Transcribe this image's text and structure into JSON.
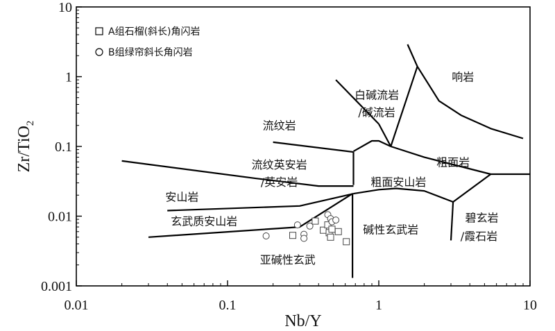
{
  "chart_data": {
    "type": "scatter",
    "title": "",
    "xlabel": "Nb/Y",
    "ylabel_main": "Zr/TiO",
    "ylabel_sub": "2",
    "xscale": "log",
    "yscale": "log",
    "xlim": [
      0.01,
      10
    ],
    "ylim": [
      0.001,
      10
    ],
    "x_ticks": [
      {
        "value": 0.01,
        "label": "0.01"
      },
      {
        "value": 0.1,
        "label": "0.1"
      },
      {
        "value": 1,
        "label": "1"
      },
      {
        "value": 10,
        "label": "10"
      }
    ],
    "y_ticks": [
      {
        "value": 0.001,
        "label": "0.001"
      },
      {
        "value": 0.01,
        "label": "0.01"
      },
      {
        "value": 0.1,
        "label": "0.1"
      },
      {
        "value": 1,
        "label": "1"
      },
      {
        "value": 10,
        "label": "10"
      }
    ],
    "grid": false,
    "legend_position": "top-left",
    "series": [
      {
        "name": "A组石榴(斜长)角闪岩",
        "marker": "square",
        "points": [
          [
            0.27,
            0.0053
          ],
          [
            0.38,
            0.0085
          ],
          [
            0.43,
            0.0063
          ],
          [
            0.46,
            0.0075
          ],
          [
            0.47,
            0.0058
          ],
          [
            0.48,
            0.005
          ],
          [
            0.49,
            0.0065
          ],
          [
            0.54,
            0.006
          ],
          [
            0.61,
            0.0043
          ]
        ]
      },
      {
        "name": "B组绿帘斜长角闪岩",
        "marker": "circle",
        "points": [
          [
            0.18,
            0.0052
          ],
          [
            0.29,
            0.0075
          ],
          [
            0.32,
            0.0055
          ],
          [
            0.32,
            0.0048
          ],
          [
            0.35,
            0.0072
          ],
          [
            0.46,
            0.0105
          ],
          [
            0.48,
            0.0092
          ],
          [
            0.49,
            0.0083
          ],
          [
            0.52,
            0.0088
          ]
        ]
      }
    ],
    "boundaries": [
      [
        [
          1.55,
          2.9
        ],
        [
          1.8,
          1.4
        ],
        [
          1.2,
          0.1
        ]
      ],
      [
        [
          1.8,
          1.4
        ],
        [
          2.5,
          0.45
        ],
        [
          3.5,
          0.28
        ],
        [
          5.5,
          0.18
        ],
        [
          9.0,
          0.13
        ]
      ],
      [
        [
          0.52,
          0.9
        ],
        [
          1.0,
          0.21
        ]
      ],
      [
        [
          1.0,
          0.21
        ],
        [
          1.2,
          0.1
        ]
      ],
      [
        [
          0.68,
          0.085
        ],
        [
          0.9,
          0.12
        ],
        [
          1.0,
          0.12
        ],
        [
          1.2,
          0.1
        ]
      ],
      [
        [
          0.2,
          0.115
        ],
        [
          0.68,
          0.083
        ]
      ],
      [
        [
          0.68,
          0.083
        ],
        [
          0.68,
          0.028
        ]
      ],
      [
        [
          0.02,
          0.062
        ],
        [
          0.15,
          0.035
        ],
        [
          0.4,
          0.027
        ],
        [
          0.68,
          0.027
        ]
      ],
      [
        [
          1.2,
          0.1
        ],
        [
          2.0,
          0.07
        ],
        [
          5.5,
          0.04
        ],
        [
          10.0,
          0.04
        ]
      ],
      [
        [
          0.68,
          0.021
        ],
        [
          1.0,
          0.024
        ],
        [
          1.3,
          0.025
        ],
        [
          2.0,
          0.023
        ],
        [
          3.1,
          0.016
        ],
        [
          5.5,
          0.04
        ]
      ],
      [
        [
          0.68,
          0.021
        ],
        [
          0.3,
          0.014
        ],
        [
          0.04,
          0.012
        ]
      ],
      [
        [
          0.67,
          0.021
        ],
        [
          0.3,
          0.007
        ],
        [
          0.03,
          0.005
        ]
      ],
      [
        [
          0.67,
          0.021
        ],
        [
          0.67,
          0.0013
        ]
      ],
      [
        [
          3.1,
          0.016
        ],
        [
          3.0,
          0.0045
        ]
      ]
    ],
    "field_labels": [
      {
        "text": "响岩",
        "x": 3.6,
        "y": 1.0
      },
      {
        "text": "白碱流岩",
        "x": 0.97,
        "y": 0.55
      },
      {
        "text": "/碱流岩",
        "x": 0.97,
        "y": 0.31
      },
      {
        "text": "流纹岩",
        "x": 0.22,
        "y": 0.2
      },
      {
        "text": "粗面岩",
        "x": 3.1,
        "y": 0.06
      },
      {
        "text": "流纹英安岩",
        "x": 0.22,
        "y": 0.055
      },
      {
        "text": "/英安岩",
        "x": 0.22,
        "y": 0.031
      },
      {
        "text": "粗面安山岩",
        "x": 1.35,
        "y": 0.031
      },
      {
        "text": "安山岩",
        "x": 0.05,
        "y": 0.019
      },
      {
        "text": "玄武质安山岩",
        "x": 0.07,
        "y": 0.0085
      },
      {
        "text": "碧玄岩",
        "x": 4.8,
        "y": 0.0095
      },
      {
        "text": "碱性玄武岩",
        "x": 1.2,
        "y": 0.0065
      },
      {
        "text": "/霞石岩",
        "x": 4.6,
        "y": 0.0052
      },
      {
        "text": "亚碱性玄武",
        "x": 0.25,
        "y": 0.0024
      }
    ]
  }
}
